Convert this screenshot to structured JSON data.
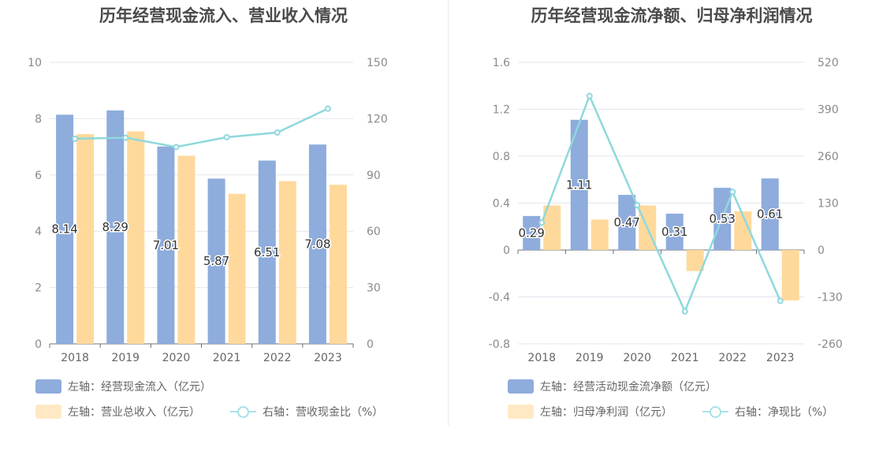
{
  "chart_data": [
    {
      "type": "bar",
      "title": "历年经营现金流入、营业收入情况",
      "categories": [
        "2018",
        "2019",
        "2020",
        "2021",
        "2022",
        "2023"
      ],
      "y_left": {
        "min": 0,
        "max": 10,
        "ticks": [
          "0",
          "2",
          "4",
          "6",
          "8",
          "10"
        ]
      },
      "y_right": {
        "min": 0,
        "max": 150,
        "ticks": [
          "0",
          "30",
          "60",
          "90",
          "120",
          "150"
        ]
      },
      "series": [
        {
          "name": "左轴：经营现金流入（亿元）",
          "axis": "left",
          "type": "bar",
          "color": "#8eacdc",
          "values": [
            8.14,
            8.29,
            7.01,
            5.87,
            6.51,
            7.08
          ],
          "labels": [
            "8.14",
            "8.29",
            "7.01",
            "5.87",
            "6.51",
            "7.08"
          ]
        },
        {
          "name": "左轴：营业总收入（亿元）",
          "axis": "left",
          "type": "bar",
          "color": "#ffd99c",
          "values": [
            7.45,
            7.55,
            6.68,
            5.33,
            5.78,
            5.65
          ]
        },
        {
          "name": "右轴：营收现金比（%）",
          "axis": "right",
          "type": "line",
          "color": "#8fd8dc",
          "values": [
            109.3,
            109.8,
            104.9,
            110.1,
            112.6,
            125.3
          ]
        }
      ],
      "grid": true,
      "legend_position": "bottom-left"
    },
    {
      "type": "bar",
      "title": "历年经营现金流净额、归母净利润情况",
      "categories": [
        "2018",
        "2019",
        "2020",
        "2021",
        "2022",
        "2023"
      ],
      "y_left": {
        "min": -0.8,
        "max": 1.6,
        "ticks": [
          "-0.8",
          "-0.4",
          "0",
          "0.4",
          "0.8",
          "1.2",
          "1.6"
        ]
      },
      "y_right": {
        "min": -260,
        "max": 520,
        "ticks": [
          "-260",
          "-130",
          "0",
          "130",
          "260",
          "390",
          "520"
        ]
      },
      "series": [
        {
          "name": "左轴：经营活动现金流净额（亿元）",
          "axis": "left",
          "type": "bar",
          "color": "#8eacdc",
          "values": [
            0.29,
            1.11,
            0.47,
            0.31,
            0.53,
            0.61
          ],
          "labels": [
            "0.29",
            "1.11",
            "0.47",
            "0.31",
            "0.53",
            "0.61"
          ]
        },
        {
          "name": "左轴：归母净利润（亿元）",
          "axis": "left",
          "type": "bar",
          "color": "#ffd99c",
          "values": [
            0.38,
            0.26,
            0.38,
            -0.18,
            0.33,
            -0.43
          ]
        },
        {
          "name": "右轴：净现比（%）",
          "axis": "right",
          "type": "line",
          "color": "#8fd8dc",
          "values": [
            76,
            427,
            124,
            -170,
            161,
            -141
          ]
        }
      ],
      "grid": true,
      "legend_position": "bottom-left"
    }
  ]
}
